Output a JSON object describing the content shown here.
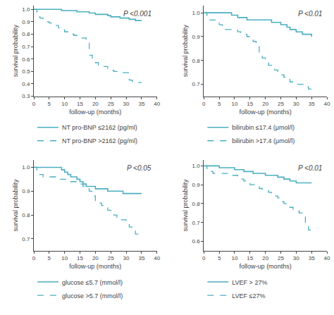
{
  "chart_data": [
    {
      "type": "step",
      "title": "P <0.001",
      "xlabel": "follow-up (months)",
      "ylabel": "survival probability",
      "xlim": [
        0,
        40
      ],
      "xticks": [
        0,
        5,
        10,
        15,
        20,
        25,
        30,
        35,
        40
      ],
      "ylim": [
        0.3,
        1.03
      ],
      "yticks": [
        0.3,
        0.4,
        0.5,
        0.6,
        0.7,
        0.8,
        0.9,
        {
          "value": 1.0,
          "label": "1.0"
        }
      ],
      "grid": false,
      "series": [
        {
          "name": "NT pro-BNP ≤2162 (pg/ml)",
          "color": "#4BAFC0",
          "line_style": "solid",
          "x": [
            0,
            2,
            5,
            8,
            9,
            11,
            14,
            17,
            18,
            19,
            20,
            22,
            24,
            25,
            26,
            28,
            30,
            31,
            32,
            33,
            35
          ],
          "values": [
            1.0,
            1.0,
            1.0,
            1.0,
            0.99,
            0.99,
            0.98,
            0.98,
            0.97,
            0.97,
            0.96,
            0.96,
            0.95,
            0.94,
            0.94,
            0.93,
            0.93,
            0.92,
            0.92,
            0.91,
            0.91
          ]
        },
        {
          "name": "NT pro-BNP >2162 (pg/ml)",
          "color": "#4BAFC0",
          "line_style": "dashed",
          "x": [
            0,
            1,
            2,
            3,
            4,
            5,
            6,
            7,
            8,
            9,
            10,
            11,
            12,
            13,
            14,
            15,
            16,
            17,
            18,
            19,
            20,
            21,
            22,
            24,
            25,
            26,
            27,
            30,
            31,
            32,
            33,
            34,
            35
          ],
          "values": [
            1.0,
            0.94,
            0.93,
            0.91,
            0.9,
            0.89,
            0.88,
            0.87,
            0.85,
            0.84,
            0.82,
            0.81,
            0.8,
            0.79,
            0.78,
            0.77,
            0.77,
            0.76,
            0.63,
            0.6,
            0.57,
            0.55,
            0.54,
            0.52,
            0.51,
            0.5,
            0.49,
            0.49,
            0.43,
            0.42,
            0.41,
            0.41,
            0.41
          ]
        }
      ]
    },
    {
      "type": "step",
      "title": "P <0.01",
      "xlabel": "follow-up (months)",
      "ylabel": "survival probability",
      "xlim": [
        0,
        40
      ],
      "xticks": [
        0,
        5,
        10,
        15,
        20,
        25,
        30,
        35,
        40
      ],
      "ylim": [
        0.65,
        1.03
      ],
      "yticks": [
        0.7,
        0.8,
        0.9,
        {
          "value": 1.0,
          "label": "1.0"
        }
      ],
      "grid": false,
      "series": [
        {
          "name": "bilirubin ≤17.4 (μmol/l)",
          "color": "#4BAFC0",
          "line_style": "solid",
          "x": [
            0,
            2,
            3,
            4,
            5,
            6,
            7,
            8,
            9,
            10,
            11,
            12,
            14,
            15,
            16,
            17,
            18,
            19,
            20,
            21,
            22,
            23,
            24,
            25,
            26,
            27,
            28,
            30,
            31,
            32,
            33,
            35
          ],
          "values": [
            1.0,
            1.0,
            1.0,
            1.0,
            1.0,
            1.0,
            1.0,
            1.0,
            0.99,
            0.99,
            0.98,
            0.98,
            0.97,
            0.97,
            0.97,
            0.97,
            0.97,
            0.97,
            0.97,
            0.97,
            0.96,
            0.96,
            0.96,
            0.95,
            0.95,
            0.94,
            0.93,
            0.92,
            0.92,
            0.91,
            0.91,
            0.9
          ]
        },
        {
          "name": "bilirubin >17.4 (μmol/l)",
          "color": "#4BAFC0",
          "line_style": "dashed",
          "x": [
            0,
            1,
            2,
            3,
            4,
            5,
            6,
            7,
            8,
            9,
            10,
            11,
            12,
            13,
            14,
            15,
            16,
            17,
            18,
            19,
            20,
            21,
            22,
            23,
            24,
            25,
            26,
            27,
            28,
            30,
            31,
            32,
            33,
            34,
            35
          ],
          "values": [
            1.0,
            0.98,
            0.97,
            0.97,
            0.96,
            0.95,
            0.94,
            0.93,
            0.93,
            0.93,
            0.93,
            0.92,
            0.91,
            0.91,
            0.9,
            0.9,
            0.88,
            0.86,
            0.83,
            0.81,
            0.8,
            0.78,
            0.77,
            0.76,
            0.75,
            0.74,
            0.73,
            0.72,
            0.71,
            0.7,
            0.7,
            0.7,
            0.69,
            0.68,
            0.68
          ]
        }
      ]
    },
    {
      "type": "step",
      "title": "P <0.05",
      "xlabel": "follow-up (months)",
      "ylabel": "survival probability",
      "xlim": [
        0,
        40
      ],
      "xticks": [
        0,
        5,
        10,
        15,
        20,
        25,
        30,
        35,
        40
      ],
      "ylim": [
        0.65,
        1.03
      ],
      "yticks": [
        0.7,
        0.8,
        0.9,
        {
          "value": 1.0,
          "label": "1.0"
        }
      ],
      "grid": false,
      "series": [
        {
          "name": "glucose ≤5.7 (mmol/l)",
          "color": "#4BAFC0",
          "line_style": "solid",
          "x": [
            0,
            1,
            2,
            3,
            4,
            5,
            6,
            7,
            8,
            9,
            10,
            11,
            12,
            14,
            15,
            16,
            17,
            18,
            19,
            20,
            21,
            22,
            24,
            25,
            26,
            27,
            28,
            29,
            30,
            35
          ],
          "values": [
            1.0,
            1.0,
            1.0,
            1.0,
            1.0,
            1.0,
            1.0,
            1.0,
            1.0,
            0.99,
            0.98,
            0.97,
            0.96,
            0.95,
            0.94,
            0.93,
            0.92,
            0.92,
            0.92,
            0.91,
            0.91,
            0.91,
            0.9,
            0.9,
            0.9,
            0.9,
            0.9,
            0.89,
            0.89,
            0.89
          ]
        },
        {
          "name": "glucose >5.7 (mmol/l)",
          "color": "#4BAFC0",
          "line_style": "dashed",
          "x": [
            0,
            1,
            2,
            3,
            4,
            5,
            6,
            7,
            8,
            9,
            10,
            11,
            12,
            13,
            14,
            15,
            16,
            17,
            18,
            19,
            20,
            21,
            22,
            23,
            24,
            25,
            26,
            27,
            28,
            29,
            30,
            31,
            32,
            33,
            34,
            35
          ],
          "values": [
            1.0,
            0.97,
            0.97,
            0.96,
            0.96,
            0.96,
            0.96,
            0.96,
            0.95,
            0.95,
            0.95,
            0.95,
            0.94,
            0.94,
            0.94,
            0.93,
            0.92,
            0.91,
            0.9,
            0.88,
            0.86,
            0.85,
            0.84,
            0.83,
            0.82,
            0.81,
            0.8,
            0.79,
            0.78,
            0.78,
            0.76,
            0.75,
            0.74,
            0.72,
            0.71,
            0.71
          ]
        }
      ]
    },
    {
      "type": "step",
      "title": "P <0.01",
      "xlabel": "follow-up (months)",
      "ylabel": "survival probability",
      "xlim": [
        0,
        40
      ],
      "xticks": [
        0,
        5,
        10,
        15,
        20,
        25,
        30,
        35,
        40
      ],
      "ylim": [
        0.55,
        1.03
      ],
      "yticks": [
        0.6,
        0.7,
        0.8,
        0.9,
        {
          "value": 1.0,
          "label": "1.0"
        }
      ],
      "grid": false,
      "series": [
        {
          "name": "LVEF > 27%",
          "color": "#4BAFC0",
          "line_style": "solid",
          "x": [
            0,
            1,
            2,
            3,
            4,
            5,
            6,
            7,
            8,
            9,
            10,
            11,
            12,
            13,
            14,
            15,
            16,
            17,
            18,
            19,
            20,
            21,
            22,
            23,
            24,
            25,
            26,
            27,
            28,
            29,
            30,
            31,
            32,
            33,
            34,
            35
          ],
          "values": [
            1.0,
            1.0,
            1.0,
            1.0,
            1.0,
            0.99,
            0.99,
            0.99,
            0.99,
            0.99,
            0.98,
            0.98,
            0.98,
            0.97,
            0.97,
            0.97,
            0.96,
            0.96,
            0.96,
            0.96,
            0.95,
            0.95,
            0.95,
            0.95,
            0.94,
            0.94,
            0.93,
            0.93,
            0.92,
            0.92,
            0.91,
            0.91,
            0.91,
            0.91,
            0.91,
            0.91
          ]
        },
        {
          "name": "LVEF ≤27%",
          "color": "#4BAFC0",
          "line_style": "dashed",
          "x": [
            0,
            1,
            2,
            3,
            4,
            5,
            6,
            7,
            8,
            9,
            10,
            11,
            12,
            13,
            14,
            15,
            16,
            17,
            18,
            19,
            20,
            21,
            22,
            23,
            24,
            25,
            26,
            27,
            28,
            29,
            30,
            31,
            32,
            33,
            34,
            35
          ],
          "values": [
            1.0,
            0.98,
            0.97,
            0.96,
            0.96,
            0.96,
            0.96,
            0.96,
            0.95,
            0.95,
            0.95,
            0.94,
            0.93,
            0.92,
            0.92,
            0.9,
            0.9,
            0.89,
            0.88,
            0.87,
            0.87,
            0.86,
            0.84,
            0.84,
            0.83,
            0.81,
            0.8,
            0.79,
            0.78,
            0.77,
            0.76,
            0.75,
            0.73,
            0.7,
            0.66,
            0.66
          ]
        }
      ]
    }
  ]
}
